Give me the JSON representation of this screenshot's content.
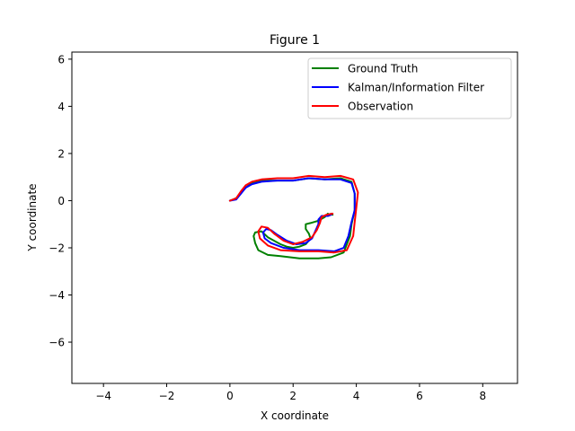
{
  "chart_data": {
    "type": "line",
    "title": "Figure 1",
    "xlabel": "X coordinate",
    "ylabel": "Y coordinate",
    "xlim": [
      -5.0,
      9.1
    ],
    "ylim": [
      -7.75,
      6.3
    ],
    "xticks": [
      -4,
      -2,
      0,
      2,
      4,
      6,
      8
    ],
    "xtick_labels": [
      "−4",
      "−2",
      "0",
      "2",
      "4",
      "6",
      "8"
    ],
    "yticks": [
      -6,
      -4,
      -2,
      0,
      2,
      4,
      6
    ],
    "ytick_labels": [
      "−6",
      "−4",
      "−2",
      "0",
      "2",
      "4",
      "6"
    ],
    "grid": false,
    "legend_position": "top-right",
    "series": [
      {
        "name": "Ground Truth",
        "color": "#008000",
        "x": [
          0.0,
          0.2,
          0.35,
          0.5,
          0.7,
          1.0,
          1.5,
          2.0,
          2.5,
          3.0,
          3.5,
          3.85,
          3.95,
          3.95,
          3.85,
          3.8,
          3.6,
          3.2,
          2.8,
          2.2,
          1.6,
          1.2,
          0.9,
          0.8,
          0.75,
          0.8,
          1.0,
          1.2,
          1.4,
          1.6,
          1.8,
          2.0,
          2.2,
          2.4,
          2.55,
          2.5,
          2.4,
          2.4,
          2.55,
          2.8,
          3.0,
          3.1,
          3.15,
          3.2,
          3.25
        ],
        "y": [
          0.0,
          0.1,
          0.35,
          0.55,
          0.75,
          0.85,
          0.85,
          0.85,
          0.95,
          0.9,
          0.95,
          0.8,
          0.3,
          -0.4,
          -1.0,
          -1.5,
          -2.2,
          -2.4,
          -2.45,
          -2.45,
          -2.35,
          -2.3,
          -2.1,
          -1.8,
          -1.5,
          -1.35,
          -1.3,
          -1.55,
          -1.7,
          -1.85,
          -1.95,
          -2.0,
          -1.95,
          -1.85,
          -1.6,
          -1.4,
          -1.2,
          -1.0,
          -0.95,
          -0.85,
          -0.7,
          -0.55,
          -0.6,
          -0.55,
          -0.6
        ]
      },
      {
        "name": "Kalman/Information Filter",
        "color": "#0000ff",
        "x": [
          0.0,
          0.2,
          0.35,
          0.5,
          0.7,
          1.0,
          1.5,
          2.0,
          2.5,
          3.0,
          3.5,
          3.85,
          3.95,
          3.95,
          3.85,
          3.75,
          3.6,
          3.3,
          2.8,
          2.2,
          1.7,
          1.3,
          1.1,
          1.05,
          1.15,
          1.3,
          1.5,
          1.8,
          2.1,
          2.4,
          2.6,
          2.7,
          2.8,
          2.8,
          2.9,
          3.1,
          3.2
        ],
        "y": [
          0.0,
          0.05,
          0.3,
          0.55,
          0.7,
          0.8,
          0.85,
          0.85,
          0.95,
          0.9,
          0.9,
          0.75,
          0.3,
          -0.4,
          -0.9,
          -1.5,
          -2.0,
          -2.15,
          -2.1,
          -2.1,
          -2.0,
          -1.8,
          -1.6,
          -1.35,
          -1.2,
          -1.25,
          -1.45,
          -1.7,
          -1.85,
          -1.8,
          -1.6,
          -1.3,
          -1.0,
          -0.8,
          -0.65,
          -0.65,
          -0.6
        ]
      },
      {
        "name": "Observation",
        "color": "#ff0000",
        "x": [
          0.0,
          0.2,
          0.35,
          0.5,
          0.7,
          1.0,
          1.5,
          2.0,
          2.5,
          3.0,
          3.5,
          3.9,
          4.05,
          4.0,
          3.95,
          3.9,
          3.7,
          3.3,
          2.8,
          2.2,
          1.6,
          1.2,
          0.95,
          0.9,
          1.0,
          1.2,
          1.4,
          1.7,
          2.0,
          2.3,
          2.6,
          2.75,
          2.85,
          2.9,
          3.05,
          3.25
        ],
        "y": [
          0.0,
          0.1,
          0.4,
          0.65,
          0.8,
          0.9,
          0.95,
          0.95,
          1.05,
          1.0,
          1.05,
          0.9,
          0.35,
          -0.3,
          -0.9,
          -1.5,
          -2.1,
          -2.2,
          -2.15,
          -2.15,
          -2.1,
          -1.9,
          -1.6,
          -1.3,
          -1.1,
          -1.15,
          -1.4,
          -1.7,
          -1.85,
          -1.75,
          -1.55,
          -1.25,
          -0.95,
          -0.7,
          -0.6,
          -0.55
        ]
      }
    ]
  }
}
